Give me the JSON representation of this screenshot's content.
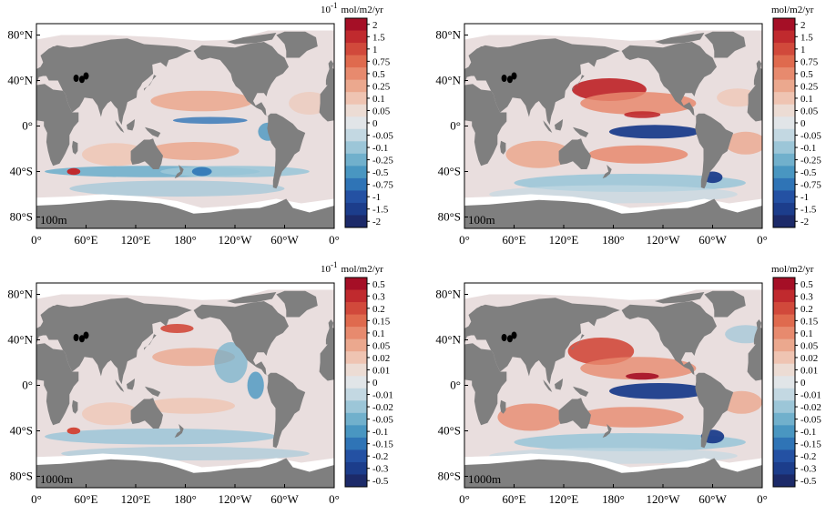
{
  "axes": {
    "lat_ticks": [
      "80°N",
      "40°N",
      "0°",
      "40°S",
      "80°S"
    ],
    "lon_ticks": [
      "0°",
      "60°E",
      "120°E",
      "180°",
      "120°W",
      "60°W",
      "0°"
    ]
  },
  "colors": {
    "land": "#7f7f7f",
    "ocean_neutral": "#e9dede",
    "ice": "#ffffff",
    "scale": [
      "#a50f26",
      "#c02a2e",
      "#d1493b",
      "#df6a4e",
      "#e78a6e",
      "#eba88e",
      "#efc4b2",
      "#ecdcd4",
      "#e1e5e8",
      "#c3d8e2",
      "#9cc6d8",
      "#71b0cc",
      "#4996c1",
      "#2f74b6",
      "#2451a3",
      "#1c3d8b",
      "#1c2a69"
    ]
  },
  "panels": [
    {
      "id": "top-left",
      "depth_label": "100m",
      "unit_prefix": "10",
      "unit_exponent": "-1",
      "unit": "mol/m2/yr",
      "colorbar_labels": [
        "2",
        "1.5",
        "1",
        "0.75",
        "0.5",
        "0.25",
        "0.1",
        "0.05",
        "0",
        "-0.05",
        "-0.1",
        "-0.25",
        "-0.5",
        "-0.75",
        "-1",
        "-1.5",
        "-2"
      ]
    },
    {
      "id": "top-right",
      "depth_label": "100m",
      "unit_prefix": "",
      "unit_exponent": "",
      "unit": "mol/m2/yr",
      "colorbar_labels": [
        "2",
        "1.5",
        "1",
        "0.75",
        "0.5",
        "0.25",
        "0.1",
        "0.05",
        "0",
        "-0.05",
        "-0.1",
        "-0.25",
        "-0.5",
        "-0.75",
        "-1",
        "-1.5",
        "-2"
      ]
    },
    {
      "id": "bottom-left",
      "depth_label": "1000m",
      "unit_prefix": "10",
      "unit_exponent": "-1",
      "unit": "mol/m2/yr",
      "colorbar_labels": [
        "0.5",
        "0.3",
        "0.2",
        "0.15",
        "0.1",
        "0.05",
        "0.02",
        "0.01",
        "0",
        "-0.01",
        "-0.02",
        "-0.05",
        "-0.1",
        "-0.15",
        "-0.2",
        "-0.3",
        "-0.5"
      ]
    },
    {
      "id": "bottom-right",
      "depth_label": "1000m",
      "unit_prefix": "",
      "unit_exponent": "",
      "unit": "mol/m2/yr",
      "colorbar_labels": [
        "0.5",
        "0.3",
        "0.2",
        "0.15",
        "0.1",
        "0.05",
        "0.02",
        "0.01",
        "0",
        "-0.01",
        "-0.02",
        "-0.05",
        "-0.1",
        "-0.15",
        "-0.2",
        "-0.3",
        "-0.5"
      ]
    }
  ]
}
